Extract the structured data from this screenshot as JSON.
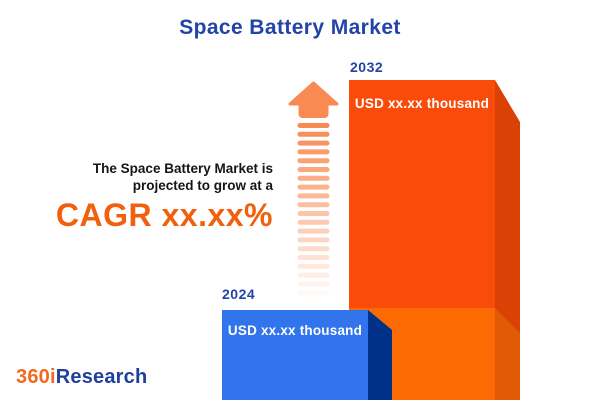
{
  "title": "Space Battery Market",
  "tagline": {
    "line1": "The Space Battery Market is",
    "line2": "projected to grow at a",
    "cagr": "CAGR xx.xx%"
  },
  "bars": {
    "start": {
      "year": "2024",
      "value": "USD xx.xx thousand"
    },
    "end": {
      "year": "2032",
      "value": "USD xx.xx thousand"
    }
  },
  "logo": {
    "prefix": "360i",
    "suffix": "Research"
  },
  "icons": {
    "arrow": "growth-arrow-icon"
  },
  "colors": {
    "title_blue": "#2243A8",
    "cagr_orange": "#F2600D",
    "bar_2032_face": "#F94B0A",
    "bar_2032_face_lower": "#FC6A04",
    "bar_2032_side": "#D94105",
    "bar_2032_side_lower": "#E25A06",
    "bar_2024_face": "#3174EB",
    "bar_2024_side": "#003189",
    "arrow_orange": "#F98A52",
    "logo_orange": "#F26A21",
    "logo_blue": "#1F3F9E",
    "background": "#FFFFFF"
  },
  "chart_data": {
    "type": "bar",
    "categories": [
      "2024",
      "2032"
    ],
    "values": [
      "USD xx.xx thousand",
      "USD xx.xx thousand"
    ],
    "title": "Space Battery Market",
    "xlabel": "",
    "ylabel": "",
    "legend": [],
    "annotations": [
      "The Space Battery Market is projected to grow at a CAGR xx.xx%"
    ]
  }
}
